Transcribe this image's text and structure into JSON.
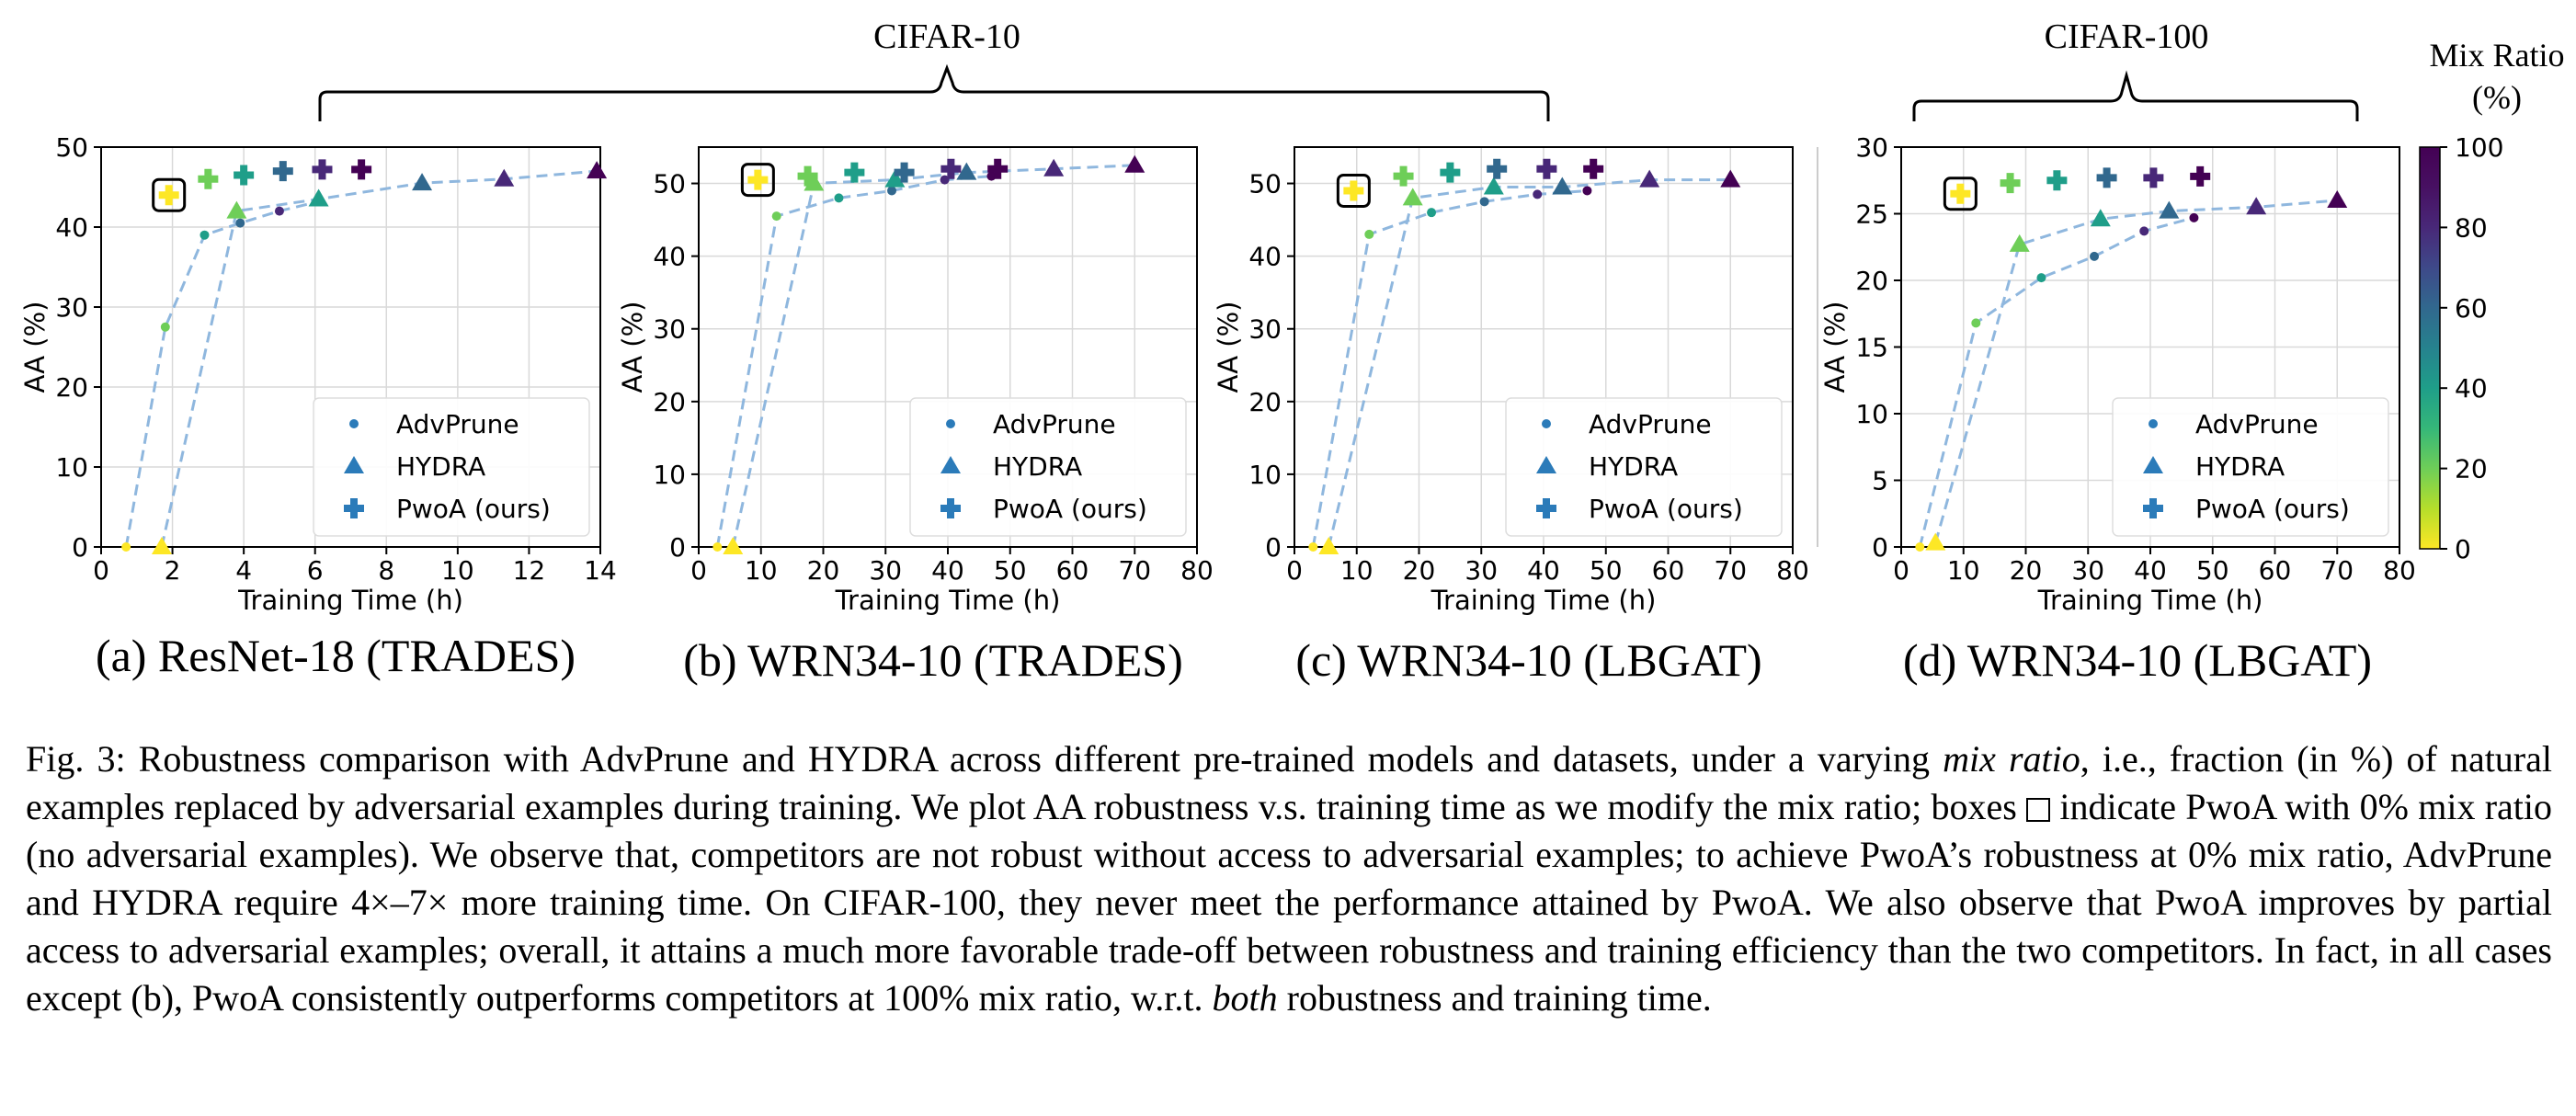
{
  "group_labels": {
    "cifar10": "CIFAR-10",
    "cifar100": "CIFAR-100"
  },
  "colorbar": {
    "title_line1": "Mix Ratio",
    "title_line2": "(%)",
    "ticks": [
      "0",
      "20",
      "40",
      "60",
      "80",
      "100"
    ],
    "colormap": "viridis (reversed: yellow = 0, purple = 100)"
  },
  "caption": {
    "intro": "Fig. 3: Robustness comparison with AdvPrune and HYDRA across different pre-trained models and datasets, under a varying ",
    "mix_ratio_em": "mix ratio",
    "part2": ", i.e., fraction (in %) of natural examples replaced by adversarial examples during training. We plot AA robustness v.s. training time as we modify the mix ratio; boxes ",
    "part3": " indicate PwoA with 0% mix ratio (no adversarial examples). We observe that, competitors are not robust without access to adversarial examples; to achieve PwoA’s robustness at 0% mix ratio, AdvPrune and HYDRA require 4×–7× more training time. On CIFAR-100, they never meet the performance attained by PwoA. We also observe that PwoA improves by partial access to adversarial examples; overall, it attains a much more favorable trade-off between robustness and training efficiency than the two competitors. In fact, in all cases except (b), PwoA consistently outperforms competitors at 100% mix ratio, w.r.t. ",
    "both_em": "both",
    "part4": " robustness and training time."
  },
  "legend_labels": [
    "AdvPrune",
    "HYDRA",
    "PwoA (ours)"
  ],
  "chart_data": [
    {
      "type": "scatter",
      "subtitle": "(a) ResNet-18 (TRADES)",
      "dataset": "CIFAR-10",
      "xlabel": "Training Time (h)",
      "ylabel": "AA (%)",
      "xlim": [
        0,
        14
      ],
      "ylim": [
        0,
        50
      ],
      "xticks": [
        0,
        2,
        4,
        6,
        8,
        10,
        12,
        14
      ],
      "yticks": [
        0,
        10,
        20,
        30,
        40,
        50
      ],
      "grid": true,
      "legend_position": "lower-right",
      "series": [
        {
          "name": "AdvPrune",
          "marker": "dot",
          "points": [
            [
              0.7,
              0
            ],
            [
              1.8,
              27.5
            ],
            [
              2.9,
              39
            ],
            [
              3.9,
              40.5
            ],
            [
              5.0,
              42
            ],
            [
              6.1,
              43.2
            ]
          ],
          "mix": [
            0,
            20,
            40,
            60,
            80,
            100
          ]
        },
        {
          "name": "HYDRA",
          "marker": "triangle",
          "points": [
            [
              1.7,
              0
            ],
            [
              3.8,
              42
            ],
            [
              6.1,
              43.5
            ],
            [
              9.0,
              45.5
            ],
            [
              11.3,
              46
            ],
            [
              13.9,
              47
            ]
          ],
          "mix": [
            0,
            20,
            40,
            60,
            80,
            100
          ]
        },
        {
          "name": "PwoA (ours)",
          "marker": "plus",
          "points": [
            [
              1.9,
              44
            ],
            [
              3.0,
              46
            ],
            [
              4.0,
              46.5
            ],
            [
              5.1,
              47
            ],
            [
              6.2,
              47.2
            ],
            [
              7.3,
              47.2
            ]
          ],
          "mix": [
            0,
            20,
            40,
            60,
            80,
            100
          ]
        }
      ],
      "boxed": [
        1.9,
        44
      ]
    },
    {
      "type": "scatter",
      "subtitle": "(b) WRN34-10 (TRADES)",
      "dataset": "CIFAR-10",
      "xlabel": "Training Time (h)",
      "ylabel": "AA (%)",
      "xlim": [
        0,
        80
      ],
      "ylim": [
        0,
        55
      ],
      "xticks": [
        0,
        10,
        20,
        30,
        40,
        50,
        60,
        70,
        80
      ],
      "yticks": [
        0,
        10,
        20,
        30,
        40,
        50
      ],
      "grid": true,
      "legend_position": "lower-right",
      "series": [
        {
          "name": "AdvPrune",
          "marker": "dot",
          "points": [
            [
              3,
              0
            ],
            [
              12.5,
              45.5
            ],
            [
              22.5,
              48
            ],
            [
              31,
              49
            ],
            [
              39.5,
              50.5
            ],
            [
              47,
              51
            ]
          ],
          "mix": [
            0,
            20,
            40,
            60,
            80,
            100
          ]
        },
        {
          "name": "HYDRA",
          "marker": "triangle",
          "points": [
            [
              5.5,
              0
            ],
            [
              18.5,
              50
            ],
            [
              31.5,
              50.5
            ],
            [
              43,
              51.5
            ],
            [
              57,
              52
            ],
            [
              70,
              52.5
            ]
          ],
          "mix": [
            0,
            20,
            40,
            60,
            80,
            100
          ]
        },
        {
          "name": "PwoA (ours)",
          "marker": "plus",
          "points": [
            [
              9.5,
              50.5
            ],
            [
              17.5,
              51
            ],
            [
              25,
              51.5
            ],
            [
              33,
              51.5
            ],
            [
              40.5,
              52
            ],
            [
              48,
              52
            ]
          ],
          "mix": [
            0,
            20,
            40,
            60,
            80,
            100
          ]
        }
      ],
      "boxed": [
        9.5,
        50.5
      ]
    },
    {
      "type": "scatter",
      "subtitle": "(c) WRN34-10 (LBGAT)",
      "dataset": "CIFAR-10",
      "xlabel": "Training Time (h)",
      "ylabel": "AA (%)",
      "xlim": [
        0,
        80
      ],
      "ylim": [
        0,
        55
      ],
      "xticks": [
        0,
        10,
        20,
        30,
        40,
        50,
        60,
        70,
        80
      ],
      "yticks": [
        0,
        10,
        20,
        30,
        40,
        50
      ],
      "grid": true,
      "legend_position": "lower-right",
      "series": [
        {
          "name": "AdvPrune",
          "marker": "dot",
          "points": [
            [
              3,
              0
            ],
            [
              12,
              43
            ],
            [
              22,
              46
            ],
            [
              30.5,
              47.5
            ],
            [
              39,
              48.5
            ],
            [
              47,
              49
            ]
          ],
          "mix": [
            0,
            20,
            40,
            60,
            80,
            100
          ]
        },
        {
          "name": "HYDRA",
          "marker": "triangle",
          "points": [
            [
              5.5,
              0
            ],
            [
              19,
              48
            ],
            [
              32,
              49.5
            ],
            [
              43,
              49.5
            ],
            [
              57,
              50.5
            ],
            [
              70,
              50.5
            ]
          ],
          "mix": [
            0,
            20,
            40,
            60,
            80,
            100
          ]
        },
        {
          "name": "PwoA (ours)",
          "marker": "plus",
          "points": [
            [
              9.5,
              49
            ],
            [
              17.5,
              51
            ],
            [
              25,
              51.5
            ],
            [
              32.5,
              52
            ],
            [
              40.5,
              52
            ],
            [
              48,
              52
            ]
          ],
          "mix": [
            0,
            20,
            40,
            60,
            80,
            100
          ]
        }
      ],
      "boxed": [
        9.5,
        49
      ]
    },
    {
      "type": "scatter",
      "subtitle": "(d) WRN34-10 (LBGAT)",
      "dataset": "CIFAR-100",
      "xlabel": "Training Time (h)",
      "ylabel": "AA (%)",
      "xlim": [
        0,
        80
      ],
      "ylim": [
        0,
        30
      ],
      "xticks": [
        0,
        10,
        20,
        30,
        40,
        50,
        60,
        70,
        80
      ],
      "yticks": [
        0,
        5,
        10,
        15,
        20,
        25,
        30
      ],
      "grid": true,
      "legend_position": "lower-right",
      "series": [
        {
          "name": "AdvPrune",
          "marker": "dot",
          "points": [
            [
              3,
              0
            ],
            [
              12,
              16.8
            ],
            [
              22.5,
              20.2
            ],
            [
              31,
              21.8
            ],
            [
              39,
              23.7
            ],
            [
              47,
              24.7
            ]
          ],
          "mix": [
            0,
            20,
            40,
            60,
            80,
            100
          ]
        },
        {
          "name": "HYDRA",
          "marker": "triangle",
          "points": [
            [
              5.5,
              0.3
            ],
            [
              19,
              22.7
            ],
            [
              32,
              24.6
            ],
            [
              43,
              25.2
            ],
            [
              57,
              25.5
            ],
            [
              70,
              26
            ]
          ],
          "mix": [
            0,
            20,
            40,
            60,
            80,
            100
          ]
        },
        {
          "name": "PwoA (ours)",
          "marker": "plus",
          "points": [
            [
              9.5,
              26.5
            ],
            [
              17.5,
              27.3
            ],
            [
              25,
              27.5
            ],
            [
              33,
              27.7
            ],
            [
              40.5,
              27.7
            ],
            [
              48,
              27.8
            ]
          ],
          "mix": [
            0,
            20,
            40,
            60,
            80,
            100
          ]
        }
      ],
      "boxed": [
        9.5,
        26.5
      ]
    }
  ]
}
